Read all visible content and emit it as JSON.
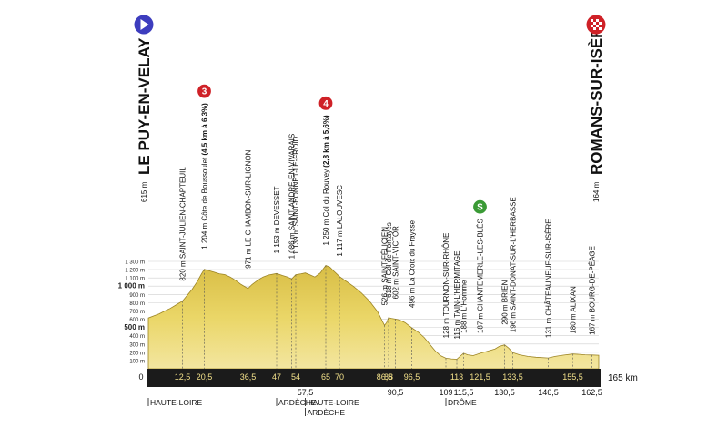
{
  "chart_data": {
    "type": "area",
    "title": "",
    "xlabel": "",
    "ylabel": "",
    "distance_unit": "km",
    "total_distance_label": "165 km",
    "ylim": [
      0,
      1300
    ],
    "xlim": [
      0,
      165
    ],
    "y_ticks": [
      {
        "value": 100,
        "label": "100 m",
        "bold": false
      },
      {
        "value": 200,
        "label": "200 m",
        "bold": false
      },
      {
        "value": 300,
        "label": "300 m",
        "bold": false
      },
      {
        "value": 400,
        "label": "400 m",
        "bold": false
      },
      {
        "value": 500,
        "label": "500 m",
        "bold": true
      },
      {
        "value": 600,
        "label": "600 m",
        "bold": false
      },
      {
        "value": 700,
        "label": "700 m",
        "bold": false
      },
      {
        "value": 800,
        "label": "800 m",
        "bold": false
      },
      {
        "value": 900,
        "label": "900 m",
        "bold": false
      },
      {
        "value": 1000,
        "label": "1 000 m",
        "bold": true
      },
      {
        "value": 1100,
        "label": "1 100 m",
        "bold": false
      },
      {
        "value": 1200,
        "label": "1 200 m",
        "bold": false
      },
      {
        "value": 1300,
        "label": "1 300 m",
        "bold": false
      }
    ],
    "x_ticks_top": [
      {
        "value": 0,
        "label": "0"
      },
      {
        "value": 12.5,
        "label": "12,5"
      },
      {
        "value": 20.5,
        "label": "20,5"
      },
      {
        "value": 36.5,
        "label": "36,5"
      },
      {
        "value": 47,
        "label": "47"
      },
      {
        "value": 54,
        "label": "54"
      },
      {
        "value": 65,
        "label": "65"
      },
      {
        "value": 70,
        "label": "70"
      },
      {
        "value": 86.5,
        "label": "86,5"
      },
      {
        "value": 88,
        "label": "88"
      },
      {
        "value": 96.5,
        "label": "96,5"
      },
      {
        "value": 113,
        "label": "113"
      },
      {
        "value": 121.5,
        "label": "121,5"
      },
      {
        "value": 133.5,
        "label": "133,5"
      },
      {
        "value": 155.5,
        "label": "155,5"
      }
    ],
    "x_ticks_bottom": [
      {
        "value": 57.5,
        "label": "57,5"
      },
      {
        "value": 90.5,
        "label": "90,5"
      },
      {
        "value": 109,
        "label": "109"
      },
      {
        "value": 115.5,
        "label": "115,5"
      },
      {
        "value": 130.5,
        "label": "130,5"
      },
      {
        "value": 146.5,
        "label": "146,5"
      },
      {
        "value": 162.5,
        "label": "162,5"
      }
    ],
    "profile": [
      [
        0,
        615
      ],
      [
        2,
        640
      ],
      [
        4,
        665
      ],
      [
        6,
        700
      ],
      [
        8,
        730
      ],
      [
        10,
        770
      ],
      [
        12.5,
        820
      ],
      [
        14,
        880
      ],
      [
        16,
        960
      ],
      [
        18,
        1060
      ],
      [
        19.5,
        1150
      ],
      [
        20.5,
        1204
      ],
      [
        22,
        1190
      ],
      [
        24,
        1170
      ],
      [
        26,
        1150
      ],
      [
        28,
        1140
      ],
      [
        30,
        1110
      ],
      [
        32,
        1070
      ],
      [
        34,
        1020
      ],
      [
        36.5,
        971
      ],
      [
        38,
        1020
      ],
      [
        40,
        1070
      ],
      [
        42,
        1110
      ],
      [
        44,
        1135
      ],
      [
        47,
        1153
      ],
      [
        49,
        1130
      ],
      [
        51,
        1110
      ],
      [
        52.5,
        1086
      ],
      [
        54,
        1139
      ],
      [
        56,
        1150
      ],
      [
        57.5,
        1160
      ],
      [
        59,
        1140
      ],
      [
        61,
        1110
      ],
      [
        63,
        1160
      ],
      [
        65,
        1250
      ],
      [
        66.5,
        1230
      ],
      [
        68,
        1180
      ],
      [
        70,
        1117
      ],
      [
        72,
        1070
      ],
      [
        75,
        1000
      ],
      [
        78,
        920
      ],
      [
        81,
        820
      ],
      [
        84,
        690
      ],
      [
        86.5,
        526
      ],
      [
        87.3,
        560
      ],
      [
        88,
        618
      ],
      [
        89,
        610
      ],
      [
        90.5,
        602
      ],
      [
        92,
        590
      ],
      [
        94,
        560
      ],
      [
        96.5,
        496
      ],
      [
        99,
        440
      ],
      [
        101,
        380
      ],
      [
        103,
        300
      ],
      [
        105,
        220
      ],
      [
        107,
        160
      ],
      [
        109,
        128
      ],
      [
        111,
        120
      ],
      [
        113,
        116
      ],
      [
        114.5,
        160
      ],
      [
        115.5,
        188
      ],
      [
        117,
        170
      ],
      [
        119,
        160
      ],
      [
        121.5,
        187
      ],
      [
        124,
        210
      ],
      [
        127,
        240
      ],
      [
        128.5,
        270
      ],
      [
        130.5,
        290
      ],
      [
        132,
        250
      ],
      [
        133.5,
        196
      ],
      [
        136,
        170
      ],
      [
        139,
        150
      ],
      [
        142,
        140
      ],
      [
        146.5,
        131
      ],
      [
        149,
        150
      ],
      [
        152,
        165
      ],
      [
        155.5,
        180
      ],
      [
        158,
        175
      ],
      [
        160,
        170
      ],
      [
        162.5,
        167
      ],
      [
        165,
        164
      ]
    ],
    "start": {
      "name": "LE PUY-EN-VELAY",
      "altitude_label": "615 m"
    },
    "finish": {
      "name": "ROMANS-SUR-ISÈRE",
      "altitude_label": "164 m"
    },
    "places": [
      {
        "km": 12.5,
        "alt": 820,
        "text": "820 m SAINT-JULIEN-CHAPTEUIL",
        "bold": ""
      },
      {
        "km": 20.5,
        "alt": 1204,
        "text": "1 204 m Côte de Boussoulet ",
        "bold": "(4,5 km à 6,3%)",
        "climb": "3",
        "climb_color": "#cf2127"
      },
      {
        "km": 36.5,
        "alt": 971,
        "text": "971 m LE CHAMBON-SUR-LIGNON",
        "bold": ""
      },
      {
        "km": 47,
        "alt": 1153,
        "text": "1 153 m DEVESSET",
        "bold": ""
      },
      {
        "km": 52.5,
        "alt": 1086,
        "text": "1 086 m SAINT-ANDRÉ-EN-VIVARAIS",
        "bold": ""
      },
      {
        "km": 54,
        "alt": 1139,
        "text": "1 139 m SAINT-BONNET-LE-FROID",
        "bold": ""
      },
      {
        "km": 65,
        "alt": 1250,
        "text": "1 250 m Col du Rouvey ",
        "bold": "(2,8 km à 5,6%)",
        "climb": "4",
        "climb_color": "#cf2127"
      },
      {
        "km": 70,
        "alt": 1117,
        "text": "1 117 m LALOUVESC",
        "bold": ""
      },
      {
        "km": 86.5,
        "alt": 526,
        "text": "526 m SAINT-FÉLICIEN",
        "bold": ""
      },
      {
        "km": 88,
        "alt": 618,
        "text": "618 m Col de Fontayes",
        "bold": ""
      },
      {
        "km": 90.5,
        "alt": 602,
        "text": "602 m SAINT-VICTOR",
        "bold": ""
      },
      {
        "km": 96.5,
        "alt": 496,
        "text": "496 m La Croix du Fraysse",
        "bold": ""
      },
      {
        "km": 109,
        "alt": 128,
        "text": "128 m TOURNON-SUR-RHÔNE",
        "bold": ""
      },
      {
        "km": 113,
        "alt": 116,
        "text": "116 m TAIN-L'HERMITAGE",
        "bold": ""
      },
      {
        "km": 115.5,
        "alt": 188,
        "text": "188 m L'Homme",
        "bold": ""
      },
      {
        "km": 121.5,
        "alt": 187,
        "text": "187 m CHANTEMERLE-LES-BLÉS",
        "bold": "",
        "sprint": "S",
        "sprint_color": "#3a9a35"
      },
      {
        "km": 130.5,
        "alt": 290,
        "text": "290 m BRIEN",
        "bold": ""
      },
      {
        "km": 133.5,
        "alt": 196,
        "text": "196 m SAINT-DONAT-SUR-L'HERBASSE",
        "bold": ""
      },
      {
        "km": 146.5,
        "alt": 131,
        "text": "131 m CHÂTEAUNEUF-SUR-ISÈRE",
        "bold": ""
      },
      {
        "km": 155.5,
        "alt": 180,
        "text": "180 m ALIXAN",
        "bold": ""
      },
      {
        "km": 162.5,
        "alt": 167,
        "text": "167 m BOURG-DE-PÉAGE",
        "bold": ""
      }
    ],
    "departments": [
      {
        "km": 0,
        "label": "HAUTE-LOIRE",
        "row": 0
      },
      {
        "km": 47,
        "label": "ARDÈCHE",
        "row": 0
      },
      {
        "km": 57.5,
        "label": "HAUTE-LOIRE",
        "row": 0
      },
      {
        "km": 57.5,
        "label": "ARDÈCHE",
        "row": 1
      },
      {
        "km": 109,
        "label": "DRÔME",
        "row": 0
      }
    ],
    "colors": {
      "fill": "#e9d35f",
      "fill_dark": "#c9a92f",
      "band": "#1b1b1b",
      "start_marker": "#3d3dbe",
      "finish_marker": "#cf2127"
    }
  }
}
